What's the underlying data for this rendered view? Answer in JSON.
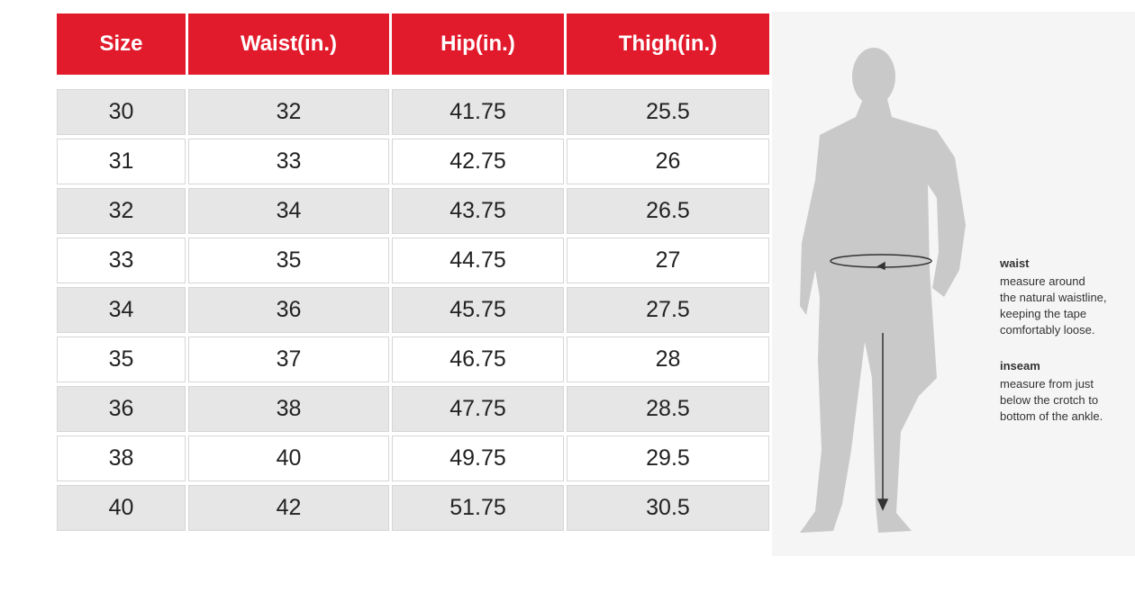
{
  "table": {
    "header": [
      "Size",
      "Waist(in.)",
      "Hip(in.)",
      "Thigh(in.)"
    ],
    "rows": [
      [
        "30",
        "32",
        "41.75",
        "25.5"
      ],
      [
        "31",
        "33",
        "42.75",
        "26"
      ],
      [
        "32",
        "34",
        "43.75",
        "26.5"
      ],
      [
        "33",
        "35",
        "44.75",
        "27"
      ],
      [
        "34",
        "36",
        "45.75",
        "27.5"
      ],
      [
        "35",
        "37",
        "46.75",
        "28"
      ],
      [
        "36",
        "38",
        "47.75",
        "28.5"
      ],
      [
        "38",
        "40",
        "49.75",
        "29.5"
      ],
      [
        "40",
        "42",
        "51.75",
        "30.5"
      ]
    ]
  },
  "guide": [
    {
      "title": "waist",
      "lines": [
        "measure around",
        "the natural waistline,",
        "keeping the tape",
        "comfortably loose."
      ]
    },
    {
      "title": "inseam",
      "lines": [
        "measure from just",
        "below the crotch to",
        "bottom of the ankle."
      ]
    }
  ]
}
